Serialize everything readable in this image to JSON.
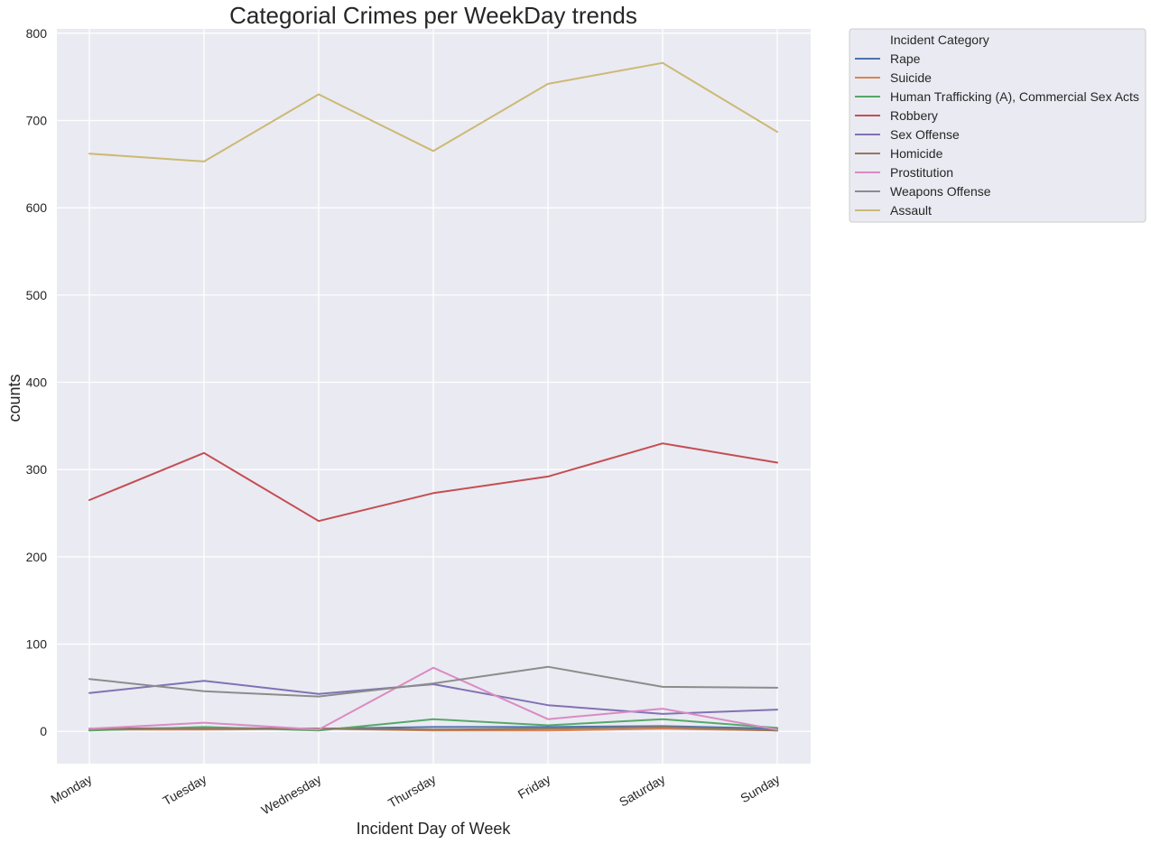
{
  "chart_data": {
    "type": "line",
    "title": "Categorial Crimes per WeekDay trends",
    "xlabel": "Incident Day of Week",
    "ylabel": "counts",
    "categories": [
      "Monday",
      "Tuesday",
      "Wednesday",
      "Thursday",
      "Friday",
      "Saturday",
      "Sunday"
    ],
    "yticks": [
      0,
      100,
      200,
      300,
      400,
      500,
      600,
      700,
      800
    ],
    "ylim": [
      -37,
      805
    ],
    "grid": true,
    "legend": {
      "title": "Incident Category",
      "placement": "outside-top-right"
    },
    "series": [
      {
        "name": "Rape",
        "color": "#4c72b0",
        "values": [
          3,
          4,
          3,
          5,
          5,
          6,
          3
        ]
      },
      {
        "name": "Suicide",
        "color": "#dd8452",
        "values": [
          2,
          2,
          3,
          1,
          1,
          3,
          1
        ]
      },
      {
        "name": "Human Trafficking (A), Commercial Sex Acts",
        "color": "#55a868",
        "values": [
          1,
          5,
          1,
          14,
          7,
          14,
          4
        ]
      },
      {
        "name": "Robbery",
        "color": "#c44e52",
        "values": [
          265,
          319,
          241,
          273,
          292,
          330,
          308
        ]
      },
      {
        "name": "Sex Offense",
        "color": "#8172b3",
        "values": [
          44,
          58,
          43,
          54,
          30,
          20,
          25
        ]
      },
      {
        "name": "Homicide",
        "color": "#937860",
        "values": [
          3,
          3,
          3,
          2,
          3,
          5,
          1
        ]
      },
      {
        "name": "Prostitution",
        "color": "#da8bc3",
        "values": [
          3,
          10,
          2,
          73,
          14,
          26,
          2
        ]
      },
      {
        "name": "Weapons Offense",
        "color": "#8c8c8c",
        "values": [
          60,
          46,
          40,
          55,
          74,
          51,
          50
        ]
      },
      {
        "name": "Assault",
        "color": "#ccb974",
        "values": [
          662,
          653,
          730,
          665,
          742,
          766,
          687
        ]
      }
    ]
  }
}
